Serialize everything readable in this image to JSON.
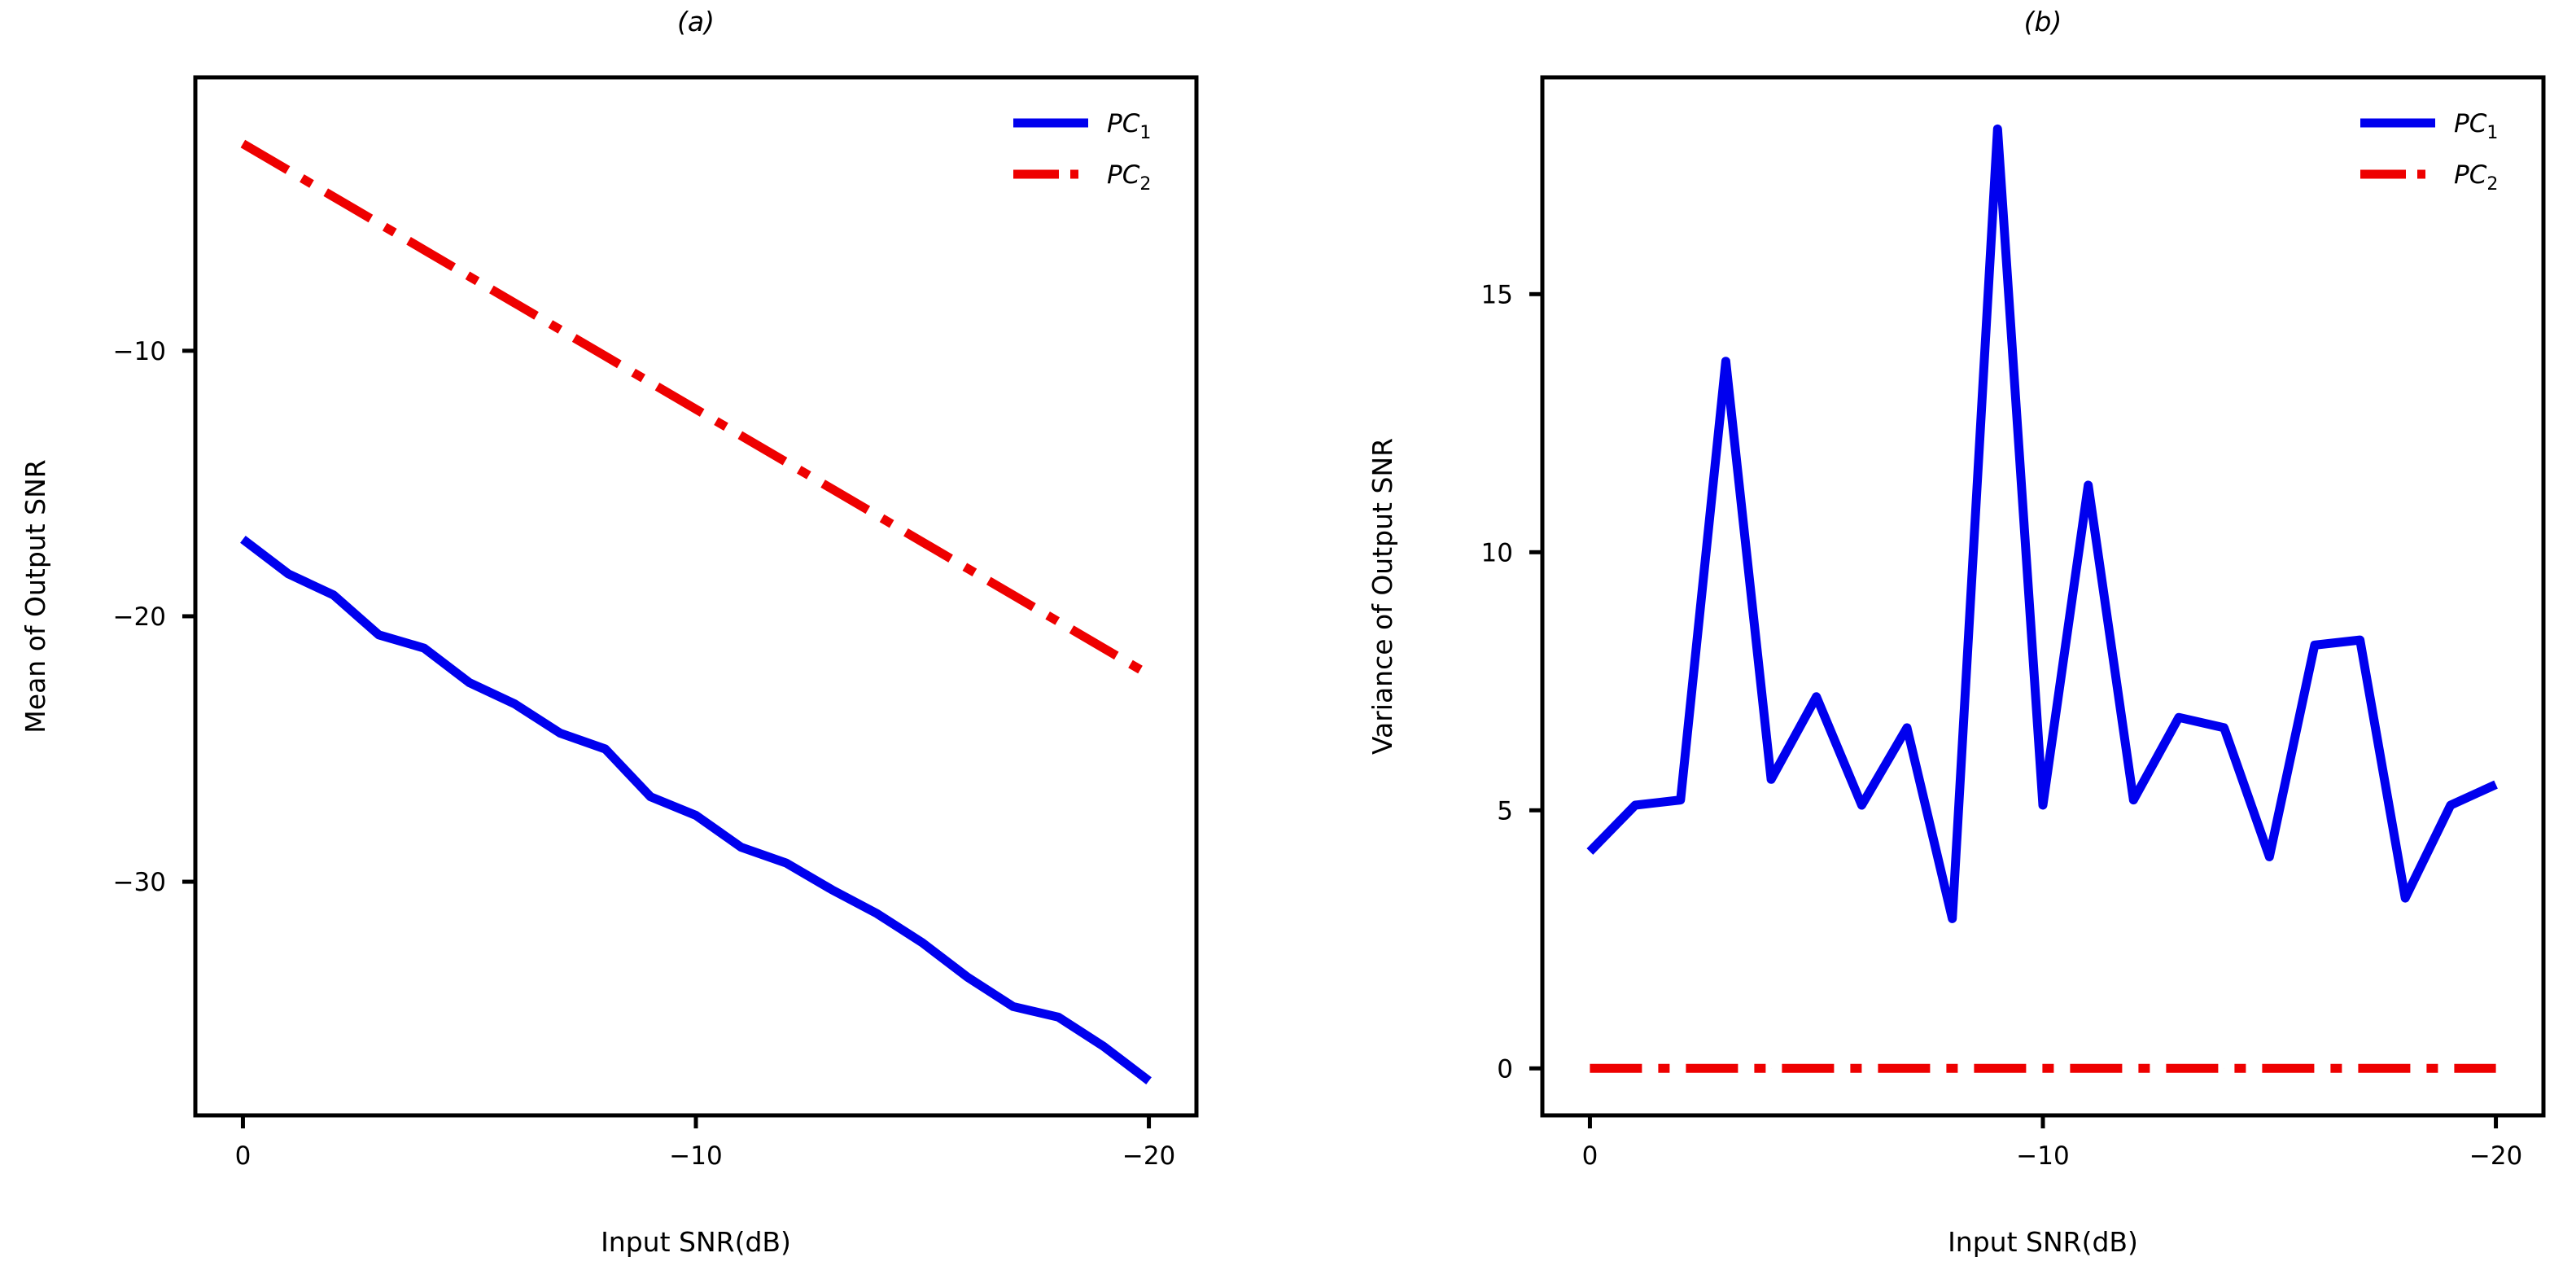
{
  "figure": {
    "colors": {
      "pc1": "#0000ee",
      "pc2": "#ee0000"
    }
  },
  "chart_data": [
    {
      "type": "line",
      "title": "(a)",
      "xlabel": "Input SNR(dB)",
      "ylabel": "Mean of Output SNR",
      "x": [
        0,
        -1,
        -2,
        -3,
        -4,
        -5,
        -6,
        -7,
        -8,
        -9,
        -10,
        -11,
        -12,
        -13,
        -14,
        -15,
        -16,
        -17,
        -18,
        -19,
        -20
      ],
      "xlim": [
        1.05,
        -21.05
      ],
      "ylim": [
        -38.8,
        0.3
      ],
      "xticks": [
        0,
        -10,
        -20
      ],
      "xtick_labels": [
        "0",
        "−10",
        "−20"
      ],
      "yticks": [
        -10,
        -20,
        -30
      ],
      "ytick_labels": [
        "−10",
        "−20",
        "−30"
      ],
      "series": [
        {
          "name": "PC",
          "sub": "1",
          "style": "solid",
          "values": [
            -17.1,
            -18.4,
            -19.2,
            -20.7,
            -21.2,
            -22.5,
            -23.3,
            -24.4,
            -25.0,
            -26.8,
            -27.5,
            -28.7,
            -29.3,
            -30.3,
            -31.2,
            -32.3,
            -33.6,
            -34.7,
            -35.1,
            -36.2,
            -37.5
          ]
        },
        {
          "name": "PC",
          "sub": "2",
          "style": "dashdot",
          "values": [
            -2.2,
            -3.2,
            -4.2,
            -5.2,
            -6.2,
            -7.2,
            -8.2,
            -9.2,
            -10.2,
            -11.2,
            -12.2,
            -13.2,
            -14.2,
            -15.2,
            -16.2,
            -17.2,
            -18.2,
            -19.2,
            -20.2,
            -21.2,
            -22.2
          ]
        }
      ]
    },
    {
      "type": "line",
      "title": "(b)",
      "xlabel": "Input SNR(dB)",
      "ylabel": "Variance of Output SNR",
      "x": [
        0,
        -1,
        -2,
        -3,
        -4,
        -5,
        -6,
        -7,
        -8,
        -9,
        -10,
        -11,
        -12,
        -13,
        -14,
        -15,
        -16,
        -17,
        -18,
        -19,
        -20
      ],
      "xlim": [
        1.05,
        -21.05
      ],
      "ylim": [
        -0.91,
        19.2
      ],
      "xticks": [
        0,
        -10,
        -20
      ],
      "xtick_labels": [
        "0",
        "−10",
        "−20"
      ],
      "yticks": [
        0,
        5,
        10,
        15
      ],
      "ytick_labels": [
        "0",
        "5",
        "10",
        "15"
      ],
      "series": [
        {
          "name": "PC",
          "sub": "1",
          "style": "solid",
          "values": [
            4.2,
            5.1,
            5.2,
            13.7,
            5.6,
            7.2,
            5.1,
            6.6,
            2.9,
            18.2,
            5.1,
            11.3,
            5.2,
            6.8,
            6.6,
            4.1,
            8.2,
            8.3,
            3.3,
            5.1,
            5.5
          ]
        },
        {
          "name": "PC",
          "sub": "2",
          "style": "dashdot",
          "values": [
            0,
            0,
            0,
            0,
            0,
            0,
            0,
            0,
            0,
            0,
            0,
            0,
            0,
            0,
            0,
            0,
            0,
            0,
            0,
            0,
            0
          ]
        }
      ]
    }
  ]
}
